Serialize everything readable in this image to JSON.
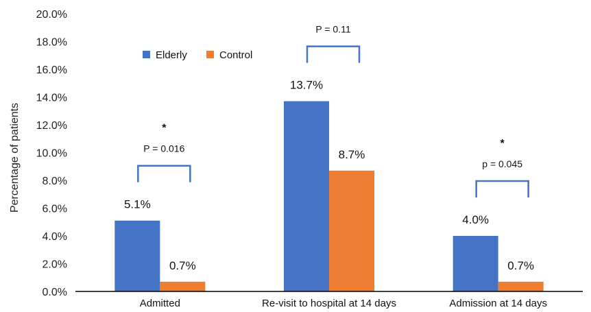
{
  "chart_data": {
    "type": "bar",
    "ylabel": "Percentage of patients",
    "ylim": [
      0,
      20
    ],
    "yticks": [
      0,
      2,
      4,
      6,
      8,
      10,
      12,
      14,
      16,
      18,
      20
    ],
    "ytick_labels": [
      "0.0%",
      "2.0%",
      "4.0%",
      "6.0%",
      "8.0%",
      "10.0%",
      "12.0%",
      "14.0%",
      "16.0%",
      "18.0%",
      "20.0%"
    ],
    "categories": [
      "Admitted",
      "Re-visit to hospital at 14 days",
      "Admission at 14 days"
    ],
    "series": [
      {
        "name": "Elderly",
        "values": [
          5.1,
          13.7,
          4.0
        ],
        "labels": [
          "5.1%",
          "13.7%",
          "4.0%"
        ],
        "color": "#4472C4"
      },
      {
        "name": "Control",
        "values": [
          0.7,
          8.7,
          0.7
        ],
        "labels": [
          "0.7%",
          "8.7%",
          "0.7%"
        ],
        "color": "#ED7D31"
      }
    ],
    "legend_position": "upper-left",
    "grid": false,
    "annotations": [
      {
        "category": 0,
        "text": "P = 0.016",
        "star": "*"
      },
      {
        "category": 1,
        "text": "P =  0.11",
        "star": ""
      },
      {
        "category": 2,
        "text": "p = 0.045",
        "star": "*"
      }
    ],
    "bracket_color": "#4472C4"
  }
}
